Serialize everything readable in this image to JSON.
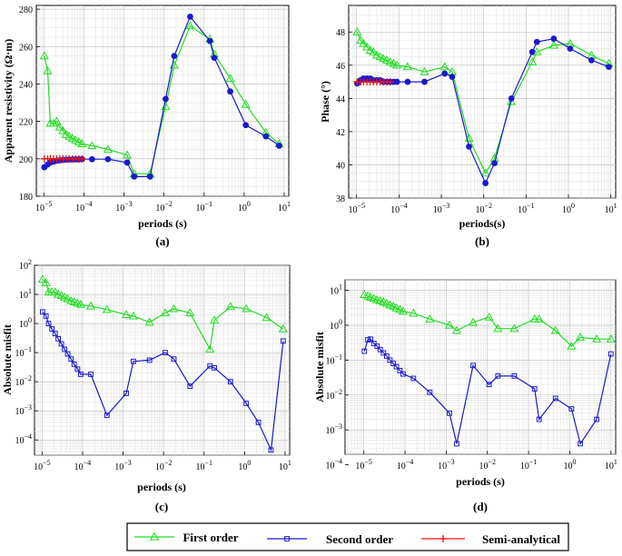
{
  "colors": {
    "first": "#22dd22",
    "second": "#1a1acc",
    "semi": "#ee1111"
  },
  "legend": {
    "first": "First order",
    "second": "Second order",
    "semi": "Semi-analytical"
  },
  "chart_data": [
    {
      "id": "a",
      "type": "line",
      "panel_label": "(a)",
      "xscale": "log",
      "yscale": "linear",
      "xlim": [
        6.5e-06,
        13
      ],
      "ylim": [
        180,
        282
      ],
      "xticks": [
        -5,
        -4,
        -3,
        -2,
        -1,
        0,
        1
      ],
      "xtick_labels": [
        "10^-5",
        "10^-4",
        "10^-3",
        "10^-2",
        "10^-1",
        "10^0",
        "10^1"
      ],
      "yticks": [
        180,
        200,
        220,
        240,
        260,
        280
      ],
      "xlabel": "periods (s)",
      "ylabel": "Apparent resistivity (Ω·m)",
      "series": [
        {
          "key": "first",
          "name": "First order",
          "marker": "triangle",
          "x": [
            1.03e-05,
            1.25e-05,
            1.45e-05,
            1.75e-05,
            2.1e-05,
            2.5e-05,
            3e-05,
            3.6e-05,
            4.3e-05,
            5.2e-05,
            6.2e-05,
            7.5e-05,
            9e-05,
            0.00016,
            0.0004,
            0.0012,
            0.0018,
            0.0045,
            0.011,
            0.018,
            0.045,
            0.14,
            0.18,
            0.45,
            1.1,
            3.5,
            7.5
          ],
          "y": [
            255,
            247,
            219,
            219,
            220,
            217,
            215,
            213,
            212,
            211,
            210,
            209,
            208,
            207,
            205,
            202,
            192,
            192,
            228,
            250,
            271,
            264,
            256,
            243,
            229,
            214,
            208
          ]
        },
        {
          "key": "second",
          "name": "Second order",
          "marker": "circle",
          "x": [
            1.03e-05,
            1.25e-05,
            1.45e-05,
            1.75e-05,
            2.1e-05,
            2.5e-05,
            3e-05,
            3.6e-05,
            4.3e-05,
            5.2e-05,
            6.2e-05,
            7.5e-05,
            9e-05,
            0.00016,
            0.0004,
            0.0012,
            0.0018,
            0.0045,
            0.011,
            0.018,
            0.045,
            0.14,
            0.18,
            0.45,
            1.1,
            3.5,
            7.5
          ],
          "y": [
            195.5,
            197,
            198,
            198.5,
            199,
            199.2,
            199.4,
            199.5,
            199.6,
            199.6,
            199.7,
            199.7,
            199.8,
            199.8,
            199.8,
            198,
            190.5,
            190.5,
            232,
            255,
            276,
            263,
            254,
            236,
            218,
            212,
            207
          ]
        },
        {
          "key": "semi",
          "name": "Semi-analytical",
          "marker": "plus",
          "x": [
            1.03e-05,
            1.25e-05,
            1.45e-05,
            1.75e-05,
            2.1e-05,
            2.5e-05,
            3e-05,
            3.6e-05,
            4.3e-05,
            5.2e-05,
            6.2e-05,
            7.5e-05,
            9e-05
          ],
          "y": [
            200,
            200,
            200,
            200,
            200,
            200,
            200,
            200,
            200,
            200,
            200,
            200,
            200
          ]
        }
      ]
    },
    {
      "id": "b",
      "type": "line",
      "panel_label": "(b)",
      "xscale": "log",
      "yscale": "linear",
      "xlim": [
        6.5e-06,
        13
      ],
      "ylim": [
        38,
        49.6
      ],
      "xticks": [
        -5,
        -4,
        -3,
        -2,
        -1,
        0,
        1
      ],
      "xtick_labels": [
        "10^-5",
        "10^-4",
        "10^-3",
        "10^-2",
        "10^-1",
        "10^0",
        "10^1"
      ],
      "yticks": [
        38,
        40,
        42,
        44,
        46,
        48
      ],
      "xlabel": "periods(s)",
      "ylabel": "Phase (°)",
      "series": [
        {
          "key": "first",
          "name": "First order",
          "marker": "triangle",
          "x": [
            1.03e-05,
            1.25e-05,
            1.45e-05,
            1.75e-05,
            2.1e-05,
            2.5e-05,
            3e-05,
            3.6e-05,
            4.3e-05,
            5.2e-05,
            6.2e-05,
            7.5e-05,
            9e-05,
            0.00016,
            0.0004,
            0.0012,
            0.0018,
            0.0045,
            0.011,
            0.018,
            0.045,
            0.14,
            0.18,
            0.45,
            1.1,
            3.5,
            9
          ],
          "y": [
            48,
            47.5,
            47.3,
            47.1,
            46.9,
            46.8,
            46.6,
            46.5,
            46.4,
            46.3,
            46.2,
            46.1,
            46,
            45.9,
            45.6,
            45.9,
            45.6,
            41.6,
            39.5,
            40.4,
            43.8,
            46.2,
            46.8,
            47.2,
            47.3,
            46.6,
            46.1
          ]
        },
        {
          "key": "second",
          "name": "Second order",
          "marker": "circle",
          "x": [
            1.03e-05,
            1.25e-05,
            1.45e-05,
            1.75e-05,
            2.1e-05,
            2.5e-05,
            3e-05,
            3.6e-05,
            4.3e-05,
            5.2e-05,
            6.2e-05,
            7.5e-05,
            9e-05,
            0.00016,
            0.0004,
            0.0012,
            0.0018,
            0.0045,
            0.011,
            0.018,
            0.045,
            0.14,
            0.18,
            0.45,
            1.1,
            3.5,
            9
          ],
          "y": [
            44.9,
            45.1,
            45.2,
            45.2,
            45.2,
            45.1,
            45.1,
            45.1,
            45,
            45,
            45,
            45,
            45,
            45,
            45,
            45.5,
            45.3,
            41.1,
            38.9,
            40.1,
            44,
            46.8,
            47.4,
            47.6,
            47,
            46.3,
            45.9
          ]
        },
        {
          "key": "semi",
          "name": "Semi-analytical",
          "marker": "plus",
          "x": [
            1.03e-05,
            1.25e-05,
            1.45e-05,
            1.75e-05,
            2.1e-05,
            2.5e-05,
            3e-05,
            3.6e-05,
            4.3e-05,
            5.2e-05,
            6.2e-05
          ],
          "y": [
            45,
            45,
            45,
            45,
            45,
            45,
            45,
            45,
            45,
            45,
            45
          ]
        }
      ]
    },
    {
      "id": "c",
      "type": "line",
      "panel_label": "(c)",
      "xscale": "log",
      "yscale": "log",
      "xlim": [
        6.5e-06,
        13
      ],
      "ylim": [
        3e-05,
        100
      ],
      "xticks": [
        -5,
        -4,
        -3,
        -2,
        -1,
        0,
        1
      ],
      "xtick_labels": [
        "10^-5",
        "10^-4",
        "10^-3",
        "10^-2",
        "10^-1",
        "10^0",
        "10^1"
      ],
      "yticks": [
        -4,
        -3,
        -2,
        -1,
        0,
        1,
        2
      ],
      "ytick_labels": [
        "10^-4",
        "10^-3",
        "10^-2",
        "10^-1",
        "10^0",
        "10^1",
        "10^2"
      ],
      "xlabel": "periods (s)",
      "ylabel": "Absolute misfit",
      "series": [
        {
          "key": "first",
          "name": "First order",
          "marker": "triangle",
          "x": [
            1.03e-05,
            1.25e-05,
            1.45e-05,
            1.75e-05,
            2.1e-05,
            2.5e-05,
            3e-05,
            3.6e-05,
            4.3e-05,
            5.2e-05,
            6.2e-05,
            7.5e-05,
            9e-05,
            0.00016,
            0.0004,
            0.0012,
            0.0018,
            0.0045,
            0.011,
            0.018,
            0.045,
            0.14,
            0.18,
            0.45,
            1.1,
            3.5,
            9
          ],
          "y": [
            33,
            25,
            12,
            12,
            12,
            10,
            9,
            8,
            7,
            6,
            5.5,
            5,
            4.5,
            4,
            3,
            2,
            1.8,
            1.1,
            2.3,
            3.2,
            2.3,
            0.13,
            1.3,
            3.8,
            3.2,
            1.6,
            0.65
          ]
        },
        {
          "key": "second",
          "name": "Second order",
          "marker": "square",
          "x": [
            1.03e-05,
            1.25e-05,
            1.45e-05,
            1.75e-05,
            2.1e-05,
            2.5e-05,
            3e-05,
            3.6e-05,
            4.3e-05,
            5.2e-05,
            6.2e-05,
            7.5e-05,
            9e-05,
            0.00016,
            0.0004,
            0.0012,
            0.0018,
            0.0045,
            0.011,
            0.018,
            0.045,
            0.14,
            0.18,
            0.45,
            1.1,
            2.2,
            4.5,
            9
          ],
          "y": [
            2.5,
            1.8,
            1,
            0.65,
            0.45,
            0.3,
            0.2,
            0.13,
            0.09,
            0.06,
            0.04,
            0.027,
            0.018,
            0.018,
            0.0007,
            0.004,
            0.05,
            0.055,
            0.1,
            0.06,
            0.007,
            0.035,
            0.03,
            0.01,
            0.0018,
            0.0004,
            4.5e-05,
            0.25
          ]
        }
      ]
    },
    {
      "id": "d",
      "type": "line",
      "panel_label": "(d)",
      "xscale": "log",
      "yscale": "log",
      "xlim": [
        3.5e-06,
        13
      ],
      "ylim": [
        0.0002,
        20
      ],
      "xticks": [
        -5,
        -4,
        -3,
        -2,
        -1,
        0,
        1
      ],
      "xtick_labels": [
        "10^-5",
        "10^-4",
        "10^-3",
        "10^-2",
        "10^-1",
        "10^0",
        "10^1"
      ],
      "yticks": [
        -4,
        -3,
        -2,
        -1,
        0,
        1
      ],
      "ytick_labels": [
        "10^-4",
        "10^-3",
        "10^-2",
        "10^-1",
        "10^0",
        "10^1"
      ],
      "xlabel": "periods (s)",
      "ylabel": "Absolute misfit",
      "series": [
        {
          "key": "first",
          "name": "First order",
          "marker": "triangle",
          "x": [
            1.03e-05,
            1.25e-05,
            1.45e-05,
            1.75e-05,
            2.1e-05,
            2.5e-05,
            3e-05,
            3.6e-05,
            4.3e-05,
            5.2e-05,
            6.2e-05,
            7.5e-05,
            9e-05,
            0.00016,
            0.0004,
            0.0012,
            0.0018,
            0.0045,
            0.011,
            0.018,
            0.045,
            0.14,
            0.18,
            0.45,
            1.1,
            1.8,
            4.5,
            10
          ],
          "y": [
            7.5,
            6.8,
            6.3,
            5.8,
            5.3,
            5,
            4.6,
            4.2,
            3.8,
            3.5,
            3.1,
            2.8,
            2.5,
            2.2,
            1.5,
            1,
            0.7,
            1.2,
            1.7,
            0.8,
            0.8,
            1.5,
            1.5,
            0.7,
            0.25,
            0.45,
            0.4,
            0.4
          ]
        },
        {
          "key": "second",
          "name": "Second order",
          "marker": "square",
          "x": [
            1.03e-05,
            1.25e-05,
            1.45e-05,
            1.75e-05,
            2.1e-05,
            2.5e-05,
            3e-05,
            3.6e-05,
            4.3e-05,
            5.2e-05,
            6.2e-05,
            7.5e-05,
            9e-05,
            0.00016,
            0.0004,
            0.0012,
            0.0018,
            0.0045,
            0.011,
            0.018,
            0.045,
            0.14,
            0.18,
            0.45,
            1.1,
            1.8,
            4.5,
            10
          ],
          "y": [
            0.18,
            0.38,
            0.4,
            0.3,
            0.25,
            0.2,
            0.16,
            0.13,
            0.1,
            0.08,
            0.065,
            0.05,
            0.04,
            0.03,
            0.012,
            0.003,
            0.0004,
            0.07,
            0.02,
            0.035,
            0.035,
            0.015,
            0.002,
            0.008,
            0.004,
            0.0004,
            0.002,
            0.15
          ]
        }
      ]
    }
  ]
}
